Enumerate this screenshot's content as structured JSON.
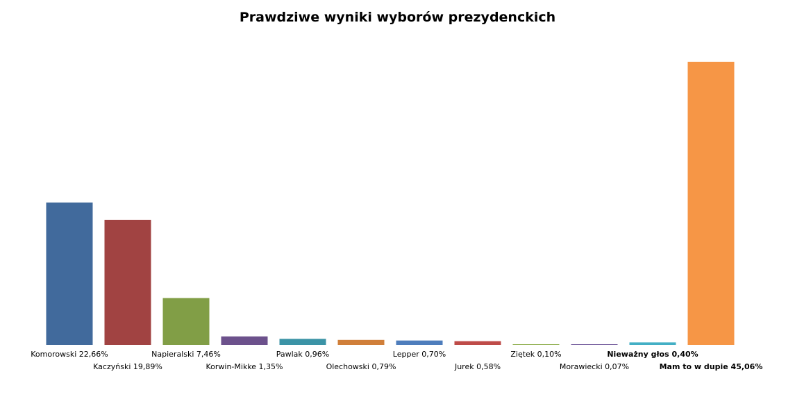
{
  "chart_data": {
    "type": "bar",
    "title": "Prawdziwe wyniki wyborów prezydenckich",
    "xlabel": "",
    "ylabel": "",
    "ylim": [
      0,
      45.06
    ],
    "grid": false,
    "legend": "none",
    "categories": [
      "Komorowski",
      "Kaczyński",
      "Napieralski",
      "Korwin-Mikke",
      "Pawlak",
      "Olechowski",
      "Lepper",
      "Jurek",
      "Ziętek",
      "Morawiecki",
      "Nieważny głos",
      "Mam to w dupie"
    ],
    "values": [
      22.66,
      19.89,
      7.46,
      1.35,
      0.96,
      0.79,
      0.7,
      0.58,
      0.1,
      0.07,
      0.4,
      45.06
    ],
    "labels": [
      "Komorowski 22,66%",
      "Kaczyński 19,89%",
      "Napieralski 7,46%",
      "Korwin-Mikke 1,35%",
      "Pawlak 0,96%",
      "Olechowski 0,79%",
      "Lepper 0,70%",
      "Jurek 0,58%",
      "Ziętek 0,10%",
      "Morawiecki 0,07%",
      "Nieważny głos 0,40%",
      "Mam to w dupie 45,06%"
    ],
    "bold_labels": [
      false,
      false,
      false,
      false,
      false,
      false,
      false,
      false,
      false,
      false,
      true,
      true
    ],
    "colors": [
      "#416A9C",
      "#A14342",
      "#819E46",
      "#6C518C",
      "#3B93A6",
      "#D07F3A",
      "#4E7DBC",
      "#BE4B48",
      "#95B357",
      "#7A63A0",
      "#43AFC5",
      "#F69646"
    ]
  }
}
